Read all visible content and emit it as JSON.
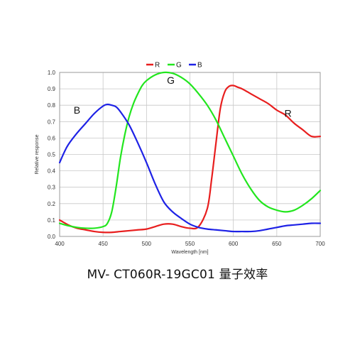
{
  "caption": "MV- CT060R-19GC01 量子效率",
  "chart_data": {
    "type": "line",
    "title": "",
    "xlabel": "Wavelength [nm]",
    "ylabel": "Relative response",
    "xlim": [
      400,
      700
    ],
    "ylim": [
      0,
      1.0
    ],
    "xticks": [
      "400",
      "450",
      "500",
      "550",
      "600",
      "650",
      "700"
    ],
    "yticks": [
      "0.0",
      "0.1",
      "0.2",
      "0.3",
      "0.4",
      "0.5",
      "0.6",
      "0.7",
      "0.8",
      "0.9",
      "1.0"
    ],
    "grid": true,
    "legend": "top-center",
    "legend_items": [
      {
        "name": "R",
        "color": "#e81e1e"
      },
      {
        "name": "G",
        "color": "#22e61e"
      },
      {
        "name": "B",
        "color": "#1e22e6"
      }
    ],
    "annotations": [
      {
        "text": "B",
        "x": 420,
        "y": 0.75
      },
      {
        "text": "G",
        "x": 528,
        "y": 0.93
      },
      {
        "text": "R",
        "x": 663,
        "y": 0.73
      }
    ],
    "series": [
      {
        "name": "R",
        "color": "#e81e1e",
        "x": [
          400,
          410,
          420,
          430,
          440,
          450,
          460,
          470,
          480,
          490,
          500,
          510,
          520,
          530,
          540,
          550,
          560,
          570,
          575,
          580,
          585,
          590,
          595,
          600,
          605,
          610,
          620,
          630,
          640,
          650,
          660,
          670,
          680,
          690,
          700
        ],
        "y": [
          0.1,
          0.07,
          0.05,
          0.04,
          0.03,
          0.025,
          0.025,
          0.03,
          0.035,
          0.04,
          0.045,
          0.06,
          0.075,
          0.075,
          0.06,
          0.05,
          0.06,
          0.17,
          0.35,
          0.57,
          0.78,
          0.88,
          0.915,
          0.92,
          0.91,
          0.9,
          0.87,
          0.84,
          0.81,
          0.77,
          0.74,
          0.69,
          0.65,
          0.61,
          0.61
        ]
      },
      {
        "name": "G",
        "color": "#22e61e",
        "x": [
          400,
          410,
          420,
          430,
          440,
          450,
          455,
          460,
          465,
          470,
          475,
          480,
          485,
          490,
          495,
          500,
          510,
          520,
          530,
          540,
          550,
          560,
          570,
          580,
          590,
          600,
          610,
          620,
          630,
          640,
          650,
          660,
          670,
          680,
          690,
          700
        ],
        "y": [
          0.08,
          0.065,
          0.055,
          0.05,
          0.05,
          0.06,
          0.08,
          0.15,
          0.3,
          0.48,
          0.62,
          0.73,
          0.81,
          0.87,
          0.92,
          0.95,
          0.985,
          1.0,
          0.995,
          0.97,
          0.93,
          0.87,
          0.8,
          0.71,
          0.6,
          0.49,
          0.38,
          0.29,
          0.22,
          0.18,
          0.16,
          0.15,
          0.16,
          0.19,
          0.23,
          0.28
        ]
      },
      {
        "name": "B",
        "color": "#1e22e6",
        "x": [
          400,
          405,
          410,
          420,
          430,
          440,
          450,
          455,
          460,
          465,
          470,
          480,
          490,
          500,
          510,
          520,
          530,
          540,
          550,
          560,
          570,
          580,
          590,
          600,
          610,
          620,
          630,
          640,
          650,
          660,
          670,
          680,
          690,
          700
        ],
        "y": [
          0.45,
          0.51,
          0.56,
          0.63,
          0.69,
          0.75,
          0.795,
          0.805,
          0.8,
          0.79,
          0.76,
          0.68,
          0.57,
          0.45,
          0.32,
          0.21,
          0.15,
          0.11,
          0.075,
          0.055,
          0.045,
          0.04,
          0.035,
          0.03,
          0.03,
          0.03,
          0.035,
          0.045,
          0.055,
          0.065,
          0.07,
          0.075,
          0.08,
          0.08
        ]
      }
    ]
  }
}
